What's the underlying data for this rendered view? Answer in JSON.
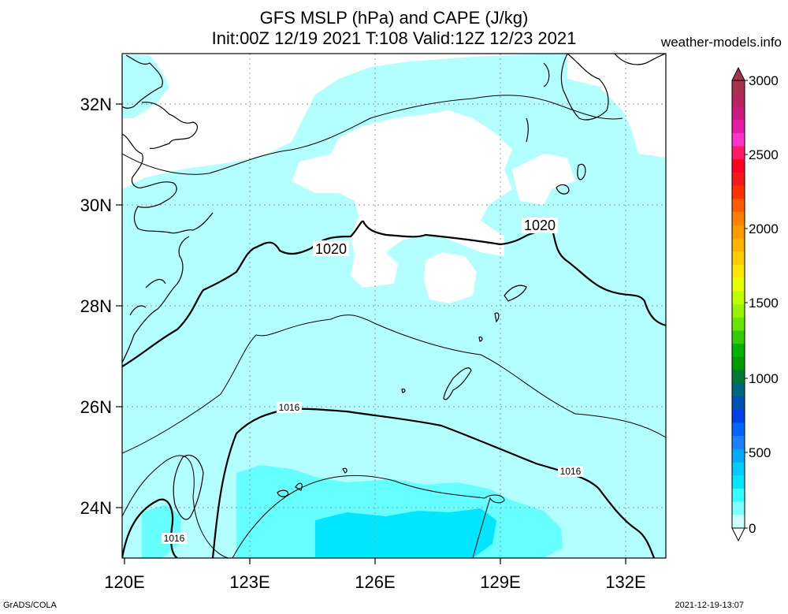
{
  "title_line1": "GFS MSLP (hPa) and CAPE (J/kg)",
  "title_line2": "Init:00Z 12/19 2021 T:108 Valid:12Z 12/23 2021",
  "site": "weather-models.info",
  "footer_left": "GrADS/COLA",
  "footer_right": "2021-12-19-13:07",
  "lat_labels": [
    "32N",
    "30N",
    "28N",
    "26N",
    "24N"
  ],
  "lon_labels": [
    "120E",
    "123E",
    "126E",
    "129E",
    "132E"
  ],
  "contour_labels": {
    "c1020_a": "1020",
    "c1020_b": "1020",
    "c1016_a": "1016",
    "c1016_b": "1016",
    "c1016_c": "1016"
  },
  "colorbar": {
    "labels": [
      "3000",
      "2500",
      "2000",
      "1500",
      "1000",
      "500",
      "0"
    ],
    "colors": [
      "#a6334d",
      "#b8255e",
      "#cc1a80",
      "#e61aa6",
      "#ff33cc",
      "#ff1a66",
      "#ff0022",
      "#f21a1a",
      "#ff3300",
      "#ff5c00",
      "#ff8000",
      "#ff9900",
      "#ffb300",
      "#ffcc00",
      "#ffe600",
      "#e6ff00",
      "#bfff00",
      "#99f200",
      "#66e600",
      "#33cc00",
      "#00b300",
      "#009900",
      "#007a33",
      "#006680",
      "#0050b3",
      "#0040e6",
      "#0066ff",
      "#1a80ff",
      "#00aaff",
      "#00ccff",
      "#00e6ff",
      "#33ffff",
      "#80ffff",
      "#ccffff"
    ]
  },
  "colors": {
    "cape_light": "#b3ffff",
    "cape_mid": "#66ffff",
    "cape_strong": "#00e6ff",
    "land_outline": "#000000",
    "grid": "#9a9a9a"
  }
}
